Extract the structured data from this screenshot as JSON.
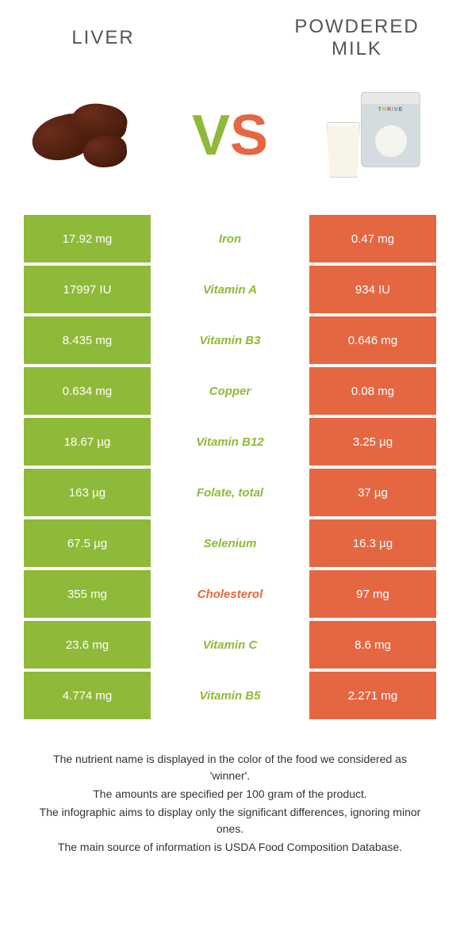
{
  "food_left": {
    "title": "LIVER",
    "color": "#8fb938"
  },
  "food_right": {
    "title": "POWDERED MILK",
    "color": "#e56742"
  },
  "vs": {
    "v_color": "#8fb938",
    "s_color": "#e56742"
  },
  "rows": [
    {
      "left": "17.92 mg",
      "nutrient": "Iron",
      "right": "0.47 mg",
      "winner": "left"
    },
    {
      "left": "17997 IU",
      "nutrient": "Vitamin A",
      "right": "934 IU",
      "winner": "left"
    },
    {
      "left": "8.435 mg",
      "nutrient": "Vitamin B3",
      "right": "0.646 mg",
      "winner": "left"
    },
    {
      "left": "0.634 mg",
      "nutrient": "Copper",
      "right": "0.08 mg",
      "winner": "left"
    },
    {
      "left": "18.67 µg",
      "nutrient": "Vitamin B12",
      "right": "3.25 µg",
      "winner": "left"
    },
    {
      "left": "163 µg",
      "nutrient": "Folate, total",
      "right": "37 µg",
      "winner": "left"
    },
    {
      "left": "67.5 µg",
      "nutrient": "Selenium",
      "right": "16.3 µg",
      "winner": "left"
    },
    {
      "left": "355 mg",
      "nutrient": "Cholesterol",
      "right": "97 mg",
      "winner": "right"
    },
    {
      "left": "23.6 mg",
      "nutrient": "Vitamin C",
      "right": "8.6 mg",
      "winner": "left"
    },
    {
      "left": "4.774 mg",
      "nutrient": "Vitamin B5",
      "right": "2.271 mg",
      "winner": "left"
    }
  ],
  "footer": {
    "line1": "The nutrient name is displayed in the color of the food we considered as 'winner'.",
    "line2": "The amounts are specified per 100 gram of the product.",
    "line3": "The infographic aims to display only the significant differences, ignoring minor ones.",
    "line4": "The main source of information is USDA Food Composition Database."
  }
}
